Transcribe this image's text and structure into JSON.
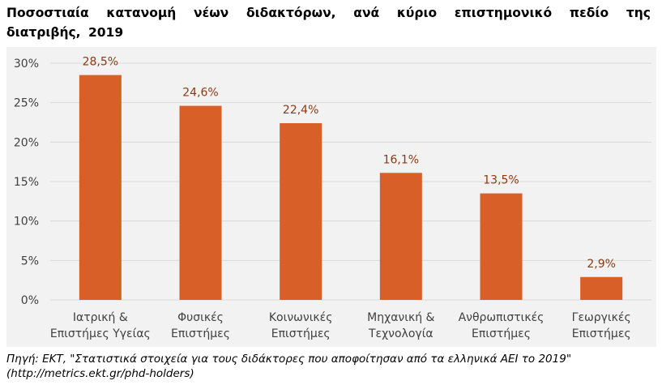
{
  "title": "Ποσοστιαία κατανομή νέων διδακτόρων, ανά κύριο επιστημονικό πεδίο της διατριβής, 2019",
  "source": {
    "line1": "Πηγή: ΕΚΤ, \"Στατιστικά στοιχεία για τους διδάκτορες που αποφοίτησαν από τα ελληνικά ΑΕΙ το 2019\"",
    "line2": "(http://metrics.ekt.gr/phd-holders)"
  },
  "colors": {
    "bar": "#d95f28",
    "label": "#8b3a13",
    "grid": "#d9d9d9",
    "plot_bg": "#f2f2f2",
    "axis_text": "#404040"
  },
  "chart_data": {
    "type": "bar",
    "categories": [
      [
        "Ιατρική &",
        "Επιστήμες Υγείας"
      ],
      [
        "Φυσικές",
        "Επιστήμες"
      ],
      [
        "Κοινωνικές",
        "Επιστήμες"
      ],
      [
        "Μηχανική &",
        "Τεχνολογία"
      ],
      [
        "Ανθρωπιστικές",
        "Επιστήμες"
      ],
      [
        "Γεωργικές",
        "Επιστήμες"
      ]
    ],
    "values": [
      28.5,
      24.6,
      22.4,
      16.1,
      13.5,
      2.9
    ],
    "data_labels": [
      "28,5%",
      "24,6%",
      "22,4%",
      "16,1%",
      "13,5%",
      "2,9%"
    ],
    "ylim": [
      0,
      30
    ],
    "yticks": [
      0,
      5,
      10,
      15,
      20,
      25,
      30
    ],
    "ytick_labels": [
      "0%",
      "5%",
      "10%",
      "15%",
      "20%",
      "25%",
      "30%"
    ],
    "grid": true,
    "legend": "none"
  }
}
